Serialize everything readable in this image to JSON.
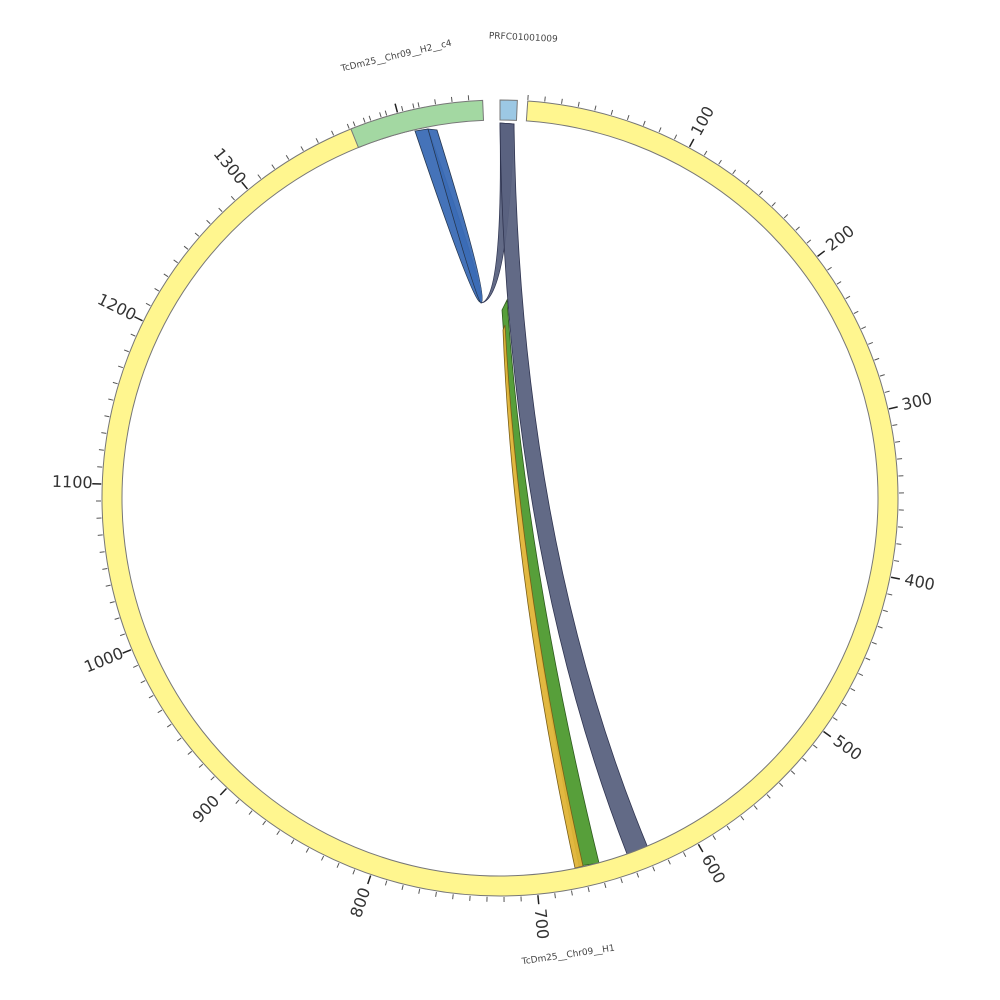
{
  "segments": [
    {
      "label": "TcDm25__Chr09__H1",
      "color": "#fff68f"
    },
    {
      "label": "TcDm25__Chr09__H2__c4",
      "color": "#a3d8a2"
    },
    {
      "label": "PRFC01001009",
      "color": "#9cc8e4"
    }
  ],
  "scale": {
    "tick_labels": [
      "100",
      "200",
      "300",
      "400",
      "500",
      "600",
      "700",
      "800",
      "900",
      "1000",
      "1100",
      "1200",
      "1300"
    ]
  },
  "links": [
    {
      "name": "blue-links",
      "color": "#3b6bb5",
      "edge": "#25364f"
    },
    {
      "name": "slate-link",
      "color": "#5a6280",
      "edge": "#2f3450"
    },
    {
      "name": "green-link",
      "color": "#4e9a2f",
      "edge": "#2d5a1d"
    },
    {
      "name": "yellow-link",
      "color": "#e0b437",
      "edge": "#7a5e17"
    }
  ]
}
